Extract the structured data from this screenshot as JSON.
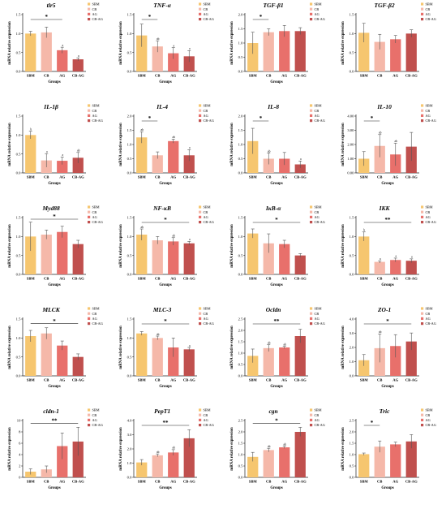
{
  "colors": {
    "SBM": "#F6C66F",
    "CB": "#F5B8A9",
    "AG": "#E8706B",
    "CB-AG": "#C0504E",
    "axis": "#222222",
    "error": "#555555"
  },
  "legend": [
    "SBM",
    "CB",
    "AG",
    "CB-AG"
  ],
  "chart_data": [
    {
      "type": "bar",
      "title": "tlr5",
      "xlabel": "Groups",
      "ylabel": "mRNA relative expression",
      "categories": [
        "SBM",
        "CB",
        "AG",
        "CB-AG"
      ],
      "values": [
        1.0,
        1.03,
        0.56,
        0.32
      ],
      "errors": [
        0.06,
        0.14,
        0.08,
        0.04
      ],
      "ylim": [
        0,
        1.5
      ],
      "yticks": [
        "0.0",
        "0.5",
        "1.0",
        "1.5"
      ],
      "labels": [
        "",
        "",
        "a",
        "a"
      ],
      "sig": [
        {
          "a": 0,
          "b": 2,
          "text": "*"
        }
      ]
    },
    {
      "type": "bar",
      "title": "TNF-α",
      "xlabel": "Groups",
      "ylabel": "mRNA relative expression",
      "categories": [
        "SBM",
        "CB",
        "AG",
        "CB-AG"
      ],
      "values": [
        0.95,
        0.66,
        0.48,
        0.4
      ],
      "errors": [
        0.3,
        0.15,
        0.15,
        0.15
      ],
      "ylim": [
        0,
        1.5
      ],
      "yticks": [
        "0.0",
        "0.5",
        "1.0",
        "1.5"
      ],
      "labels": [
        "",
        "ab",
        "a",
        "a"
      ],
      "sig": [
        {
          "a": 0,
          "b": 1,
          "text": "*"
        }
      ]
    },
    {
      "type": "bar",
      "title": "TGF-β1",
      "xlabel": "Groups",
      "ylabel": "mRNA relative expression",
      "categories": [
        "SBM",
        "CB",
        "AG",
        "CB-AG"
      ],
      "values": [
        1.0,
        1.38,
        1.42,
        1.42
      ],
      "errors": [
        0.38,
        0.12,
        0.2,
        0.12
      ],
      "ylim": [
        0,
        2.0
      ],
      "yticks": [
        "0.0",
        "0.5",
        "1.0",
        "1.5",
        "2.0"
      ],
      "labels": [
        "",
        "",
        "",
        ""
      ],
      "sig": [
        {
          "a": 0,
          "b": 1,
          "text": "*"
        }
      ]
    },
    {
      "type": "bar",
      "title": "TGF-β2",
      "xlabel": "",
      "ylabel": "mRNA relative expression",
      "categories": [
        "SBM",
        "CB",
        "AG",
        "CB-AG"
      ],
      "values": [
        1.02,
        0.78,
        0.85,
        1.0
      ],
      "errors": [
        0.25,
        0.2,
        0.1,
        0.1
      ],
      "ylim": [
        0,
        1.5
      ],
      "yticks": [
        "0.0",
        "0.5",
        "1.0",
        "1.5"
      ],
      "labels": [
        "",
        "",
        "",
        ""
      ],
      "sig": []
    },
    {
      "type": "bar",
      "title": "IL-1β",
      "xlabel": "Groups",
      "ylabel": "mRNA relative expression",
      "categories": [
        "SBM",
        "CB",
        "AG",
        "CB-AG"
      ],
      "values": [
        1.0,
        0.33,
        0.32,
        0.4
      ],
      "errors": [
        0.1,
        0.18,
        0.1,
        0.14
      ],
      "ylim": [
        0,
        1.5
      ],
      "yticks": [
        "0.0",
        "0.5",
        "1.0",
        "1.5"
      ],
      "labels": [
        "b",
        "a",
        "a",
        "ab"
      ],
      "sig": []
    },
    {
      "type": "bar",
      "title": "IL-4",
      "xlabel": "Groups",
      "ylabel": "mRNA relative expression",
      "categories": [
        "SBM",
        "CB",
        "AG",
        "CB-AG"
      ],
      "values": [
        1.25,
        0.62,
        1.12,
        0.62
      ],
      "errors": [
        0.2,
        0.12,
        0.07,
        0.2
      ],
      "ylim": [
        0,
        2.0
      ],
      "yticks": [
        "0.0",
        "0.5",
        "1.0",
        "1.5",
        "2.0"
      ],
      "labels": [
        "ab",
        "",
        "ab",
        "a"
      ],
      "sig": [
        {
          "a": 0,
          "b": 1,
          "text": "*"
        }
      ]
    },
    {
      "type": "bar",
      "title": "IL-8",
      "xlabel": "Groups",
      "ylabel": "mRNA relative expression",
      "categories": [
        "SBM",
        "CB",
        "AG",
        "CB-AG"
      ],
      "values": [
        1.12,
        0.5,
        0.5,
        0.3
      ],
      "errors": [
        0.45,
        0.2,
        0.22,
        0.12
      ],
      "ylim": [
        0,
        2.0
      ],
      "yticks": [
        "0.0",
        "0.5",
        "1.0",
        "1.5",
        "2.0"
      ],
      "labels": [
        "",
        "ab",
        "",
        "a"
      ],
      "sig": [
        {
          "a": 0,
          "b": 1,
          "text": "*"
        }
      ]
    },
    {
      "type": "bar",
      "title": "IL-10",
      "xlabel": "Groups",
      "ylabel": "mRNA relative expression",
      "categories": [
        "SBM",
        "CB",
        "AG",
        "CB-AG"
      ],
      "values": [
        1.0,
        1.9,
        1.3,
        1.85
      ],
      "errors": [
        0.5,
        0.8,
        0.8,
        1.0
      ],
      "ylim": [
        0,
        4.0
      ],
      "yticks": [
        "0.00",
        "1.00",
        "2.00",
        "3.00",
        "4.00"
      ],
      "labels": [
        "",
        "ab",
        "ab",
        ""
      ],
      "sig": [
        {
          "a": 0,
          "b": 1,
          "text": "*"
        }
      ]
    },
    {
      "type": "bar",
      "title": "Myd88",
      "xlabel": "Groups",
      "ylabel": "mRNA relative expression",
      "categories": [
        "SBM",
        "CB",
        "AG",
        "CB-AG"
      ],
      "values": [
        1.0,
        1.05,
        1.12,
        0.8
      ],
      "errors": [
        0.38,
        0.12,
        0.15,
        0.1
      ],
      "ylim": [
        0,
        1.5
      ],
      "yticks": [
        "0.0",
        "0.5",
        "1.0",
        "1.5"
      ],
      "labels": [
        "",
        "",
        "",
        ""
      ],
      "sig": [
        {
          "a": 0,
          "b": 3,
          "text": "*"
        }
      ]
    },
    {
      "type": "bar",
      "title": "NF-κB",
      "xlabel": "Groups",
      "ylabel": "mRNA relative expression",
      "categories": [
        "SBM",
        "CB",
        "AG",
        "CB-AG"
      ],
      "values": [
        1.05,
        0.9,
        0.87,
        0.82
      ],
      "errors": [
        0.15,
        0.1,
        0.1,
        0.05
      ],
      "ylim": [
        0,
        1.5
      ],
      "yticks": [
        "0.0",
        "0.5",
        "1.0",
        "1.5"
      ],
      "labels": [
        "ab",
        "",
        "ab",
        "a"
      ],
      "sig": [
        {
          "a": 0,
          "b": 3,
          "text": "*"
        }
      ]
    },
    {
      "type": "bar",
      "title": "IκB-α",
      "xlabel": "Groups",
      "ylabel": "mRNA relative expression",
      "categories": [
        "SBM",
        "CB",
        "AG",
        "CB-AG"
      ],
      "values": [
        1.08,
        0.82,
        0.8,
        0.5
      ],
      "errors": [
        0.12,
        0.25,
        0.1,
        0.05
      ],
      "ylim": [
        0,
        1.5
      ],
      "yticks": [
        "0.0",
        "0.5",
        "1.0",
        "1.5"
      ],
      "labels": [
        "",
        "",
        "",
        ""
      ],
      "sig": [
        {
          "a": 0,
          "b": 3,
          "text": "*"
        }
      ]
    },
    {
      "type": "bar",
      "title": "IKK",
      "xlabel": "Groups",
      "ylabel": "mRNA relative expression",
      "categories": [
        "SBM",
        "CB",
        "AG",
        "CB-AG"
      ],
      "values": [
        1.0,
        0.33,
        0.38,
        0.36
      ],
      "errors": [
        0.12,
        0.03,
        0.05,
        0.05
      ],
      "ylim": [
        0,
        1.5
      ],
      "yticks": [
        "0.0",
        "0.5",
        "1.0",
        "1.5"
      ],
      "labels": [
        "b",
        "a",
        "a",
        "a"
      ],
      "sig": [
        {
          "a": 0,
          "b": 3,
          "text": "**"
        }
      ]
    },
    {
      "type": "bar",
      "title": "MLCK",
      "xlabel": "Groups",
      "ylabel": "mRNA relative expression",
      "categories": [
        "SBM",
        "CB",
        "AG",
        "CB-AG"
      ],
      "values": [
        1.05,
        1.12,
        0.8,
        0.5
      ],
      "errors": [
        0.15,
        0.15,
        0.12,
        0.08
      ],
      "ylim": [
        0,
        1.5
      ],
      "yticks": [
        "0.0",
        "0.5",
        "1.0",
        "1.5"
      ],
      "labels": [
        "",
        "",
        "",
        ""
      ],
      "sig": [
        {
          "a": 0,
          "b": 3,
          "text": "*"
        }
      ]
    },
    {
      "type": "bar",
      "title": "MLC-3",
      "xlabel": "Groups",
      "ylabel": "mRNA relative expression",
      "categories": [
        "SBM",
        "CB",
        "AG",
        "CB-AG"
      ],
      "values": [
        1.12,
        1.0,
        0.75,
        0.7
      ],
      "errors": [
        0.05,
        0.05,
        0.25,
        0.05
      ],
      "ylim": [
        0,
        1.5
      ],
      "yticks": [
        "0.0",
        "0.5",
        "1.0",
        "1.5"
      ],
      "labels": [
        "",
        "ab",
        "",
        "a"
      ],
      "sig": [
        {
          "a": 0,
          "b": 3,
          "text": "*"
        }
      ]
    },
    {
      "type": "bar",
      "title": "Ocldn",
      "xlabel": "Groups",
      "ylabel": "mRNA relative expression",
      "categories": [
        "SBM",
        "CB",
        "AG",
        "CB-AG"
      ],
      "values": [
        0.88,
        1.22,
        1.25,
        1.75
      ],
      "errors": [
        0.3,
        0.15,
        0.05,
        0.3
      ],
      "ylim": [
        0,
        2.5
      ],
      "yticks": [
        "0.0",
        "0.5",
        "1.0",
        "1.5",
        "2.0",
        "2.5"
      ],
      "labels": [
        "",
        "ab",
        "ab",
        ""
      ],
      "sig": [
        {
          "a": 0,
          "b": 3,
          "text": "**"
        }
      ]
    },
    {
      "type": "bar",
      "title": "ZO-1",
      "xlabel": "Groups",
      "ylabel": "mRNA relative expression",
      "categories": [
        "SBM",
        "CB",
        "AG",
        "CB-AG"
      ],
      "values": [
        1.1,
        1.95,
        2.1,
        2.42
      ],
      "errors": [
        0.4,
        1.0,
        0.8,
        0.6
      ],
      "ylim": [
        0,
        4.0
      ],
      "yticks": [
        "0.0",
        "1.0",
        "2.0",
        "3.0",
        "4.0"
      ],
      "labels": [
        "",
        "ab",
        "",
        ""
      ],
      "sig": [
        {
          "a": 0,
          "b": 3,
          "text": "*"
        }
      ]
    },
    {
      "type": "bar",
      "title": "cldn-1",
      "xlabel": "Groups",
      "ylabel": "mRNA relative expression",
      "categories": [
        "SBM",
        "CB",
        "AG",
        "CB-AG"
      ],
      "values": [
        1.0,
        1.4,
        5.5,
        6.3
      ],
      "errors": [
        0.5,
        0.6,
        2.3,
        2.5
      ],
      "ylim": [
        0,
        10
      ],
      "yticks": [
        "0",
        "2",
        "4",
        "6",
        "8",
        "10"
      ],
      "labels": [
        "",
        "",
        "",
        ""
      ],
      "sig": [
        {
          "a": 0,
          "b": 3,
          "text": "**"
        }
      ]
    },
    {
      "type": "bar",
      "title": "PepT1",
      "xlabel": "Groups",
      "ylabel": "mRNA relative expression",
      "categories": [
        "SBM",
        "CB",
        "AG",
        "CB-AG"
      ],
      "values": [
        1.05,
        1.55,
        1.75,
        2.75
      ],
      "errors": [
        0.2,
        0.1,
        0.2,
        0.6
      ],
      "ylim": [
        0,
        4.0
      ],
      "yticks": [
        "0.0",
        "1.0",
        "2.0",
        "3.0",
        "4.0"
      ],
      "labels": [
        "",
        "ab",
        "ab",
        ""
      ],
      "sig": [
        {
          "a": 0,
          "b": 3,
          "text": "**"
        }
      ]
    },
    {
      "type": "bar",
      "title": "cgn",
      "xlabel": "Groups",
      "ylabel": "mRNA relative expression",
      "categories": [
        "SBM",
        "CB",
        "AG",
        "CB-AG"
      ],
      "values": [
        0.9,
        1.2,
        1.32,
        2.0
      ],
      "errors": [
        0.2,
        0.08,
        0.05,
        0.2
      ],
      "ylim": [
        0,
        2.5
      ],
      "yticks": [
        "0.0",
        "0.5",
        "1.0",
        "1.5",
        "2.0",
        "2.5"
      ],
      "labels": [
        "",
        "ab",
        "ab",
        ""
      ],
      "sig": [
        {
          "a": 0,
          "b": 3,
          "text": "*"
        }
      ]
    },
    {
      "type": "bar",
      "title": "Tric",
      "xlabel": "Groups",
      "ylabel": "mRNA relative expression",
      "categories": [
        "SBM",
        "CB",
        "AG",
        "CB-AG"
      ],
      "values": [
        1.02,
        1.35,
        1.45,
        1.58
      ],
      "errors": [
        0.05,
        0.25,
        0.1,
        0.3
      ],
      "ylim": [
        0,
        2.5
      ],
      "yticks": [
        "0.0",
        "0.5",
        "1.0",
        "1.5",
        "2.0",
        "2.5"
      ],
      "labels": [
        "",
        "",
        "",
        ""
      ],
      "sig": [
        {
          "a": 0,
          "b": 1,
          "text": "*"
        }
      ]
    }
  ]
}
